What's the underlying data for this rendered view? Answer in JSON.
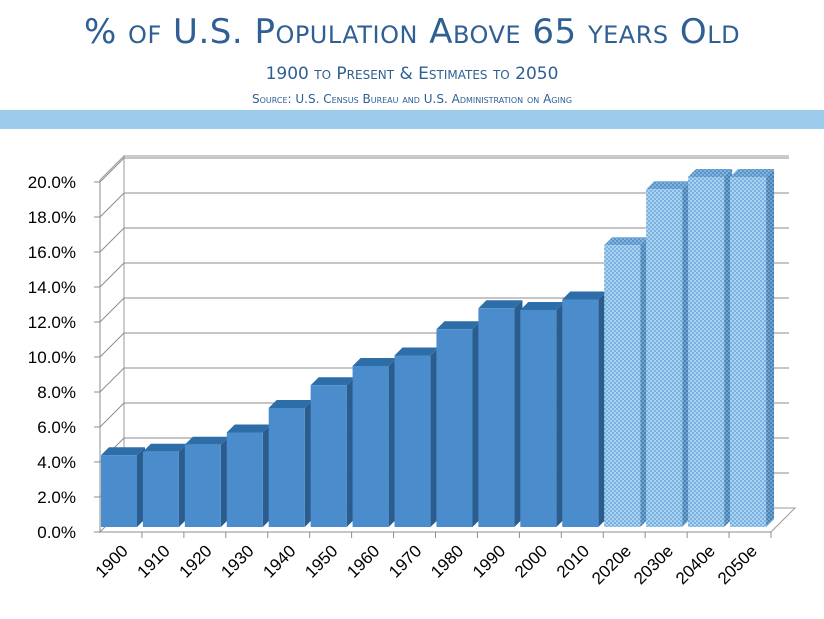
{
  "header": {
    "title": "% of U.S. Population Above 65 years Old",
    "subtitle": "1900 to Present & Estimates to 2050",
    "source": "Source: U.S. Census Bureau and U.S. Administration on Aging"
  },
  "colors": {
    "title": "#2f5f93",
    "band": "#9ccbeb",
    "bar_front": "#4a8ccc",
    "bar_top": "#2e6ea8",
    "bar_side": "#2a5c8e",
    "estimate_front": "#a9d2f0",
    "estimate_dot": "#5b9bd5"
  },
  "chart_data": {
    "type": "bar",
    "title": "% of U.S. Population Above 65 years Old",
    "subtitle": "1900 to Present & Estimates to 2050",
    "categories": [
      "1900",
      "1910",
      "1920",
      "1930",
      "1940",
      "1950",
      "1960",
      "1970",
      "1980",
      "1990",
      "2000",
      "2010",
      "2020e",
      "2030e",
      "2040e",
      "2050e"
    ],
    "values": [
      4.1,
      4.3,
      4.7,
      5.4,
      6.8,
      8.1,
      9.2,
      9.8,
      11.3,
      12.5,
      12.4,
      13.0,
      16.1,
      19.3,
      20.0,
      20.0
    ],
    "estimated": [
      false,
      false,
      false,
      false,
      false,
      false,
      false,
      false,
      false,
      false,
      false,
      false,
      true,
      true,
      true,
      true
    ],
    "ylim": [
      0,
      20
    ],
    "yticks": [
      "0.0%",
      "2.0%",
      "4.0%",
      "6.0%",
      "8.0%",
      "10.0%",
      "12.0%",
      "14.0%",
      "16.0%",
      "18.0%",
      "20.0%"
    ],
    "grid": true,
    "legend": "none",
    "style": "3d-columns"
  }
}
